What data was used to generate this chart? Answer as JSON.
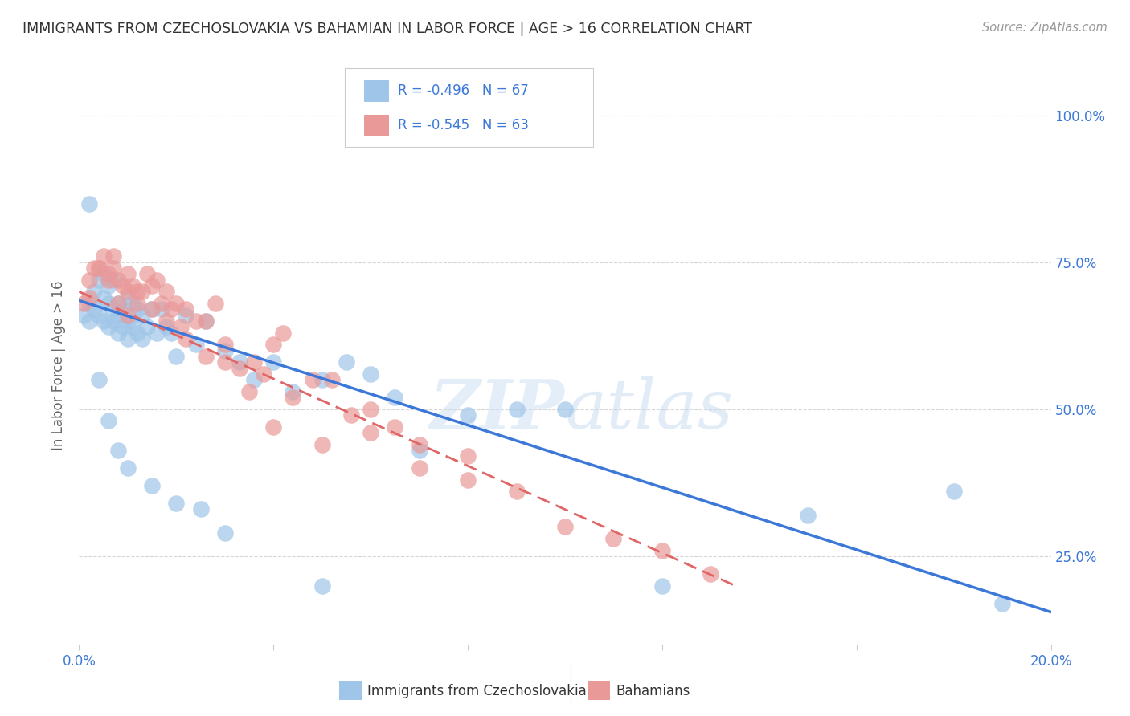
{
  "title": "IMMIGRANTS FROM CZECHOSLOVAKIA VS BAHAMIAN IN LABOR FORCE | AGE > 16 CORRELATION CHART",
  "source": "Source: ZipAtlas.com",
  "ylabel_left": "In Labor Force | Age > 16",
  "xlim": [
    0.0,
    0.2
  ],
  "ylim": [
    0.1,
    1.05
  ],
  "yticks_right": [
    0.25,
    0.5,
    0.75,
    1.0
  ],
  "ytick_right_labels": [
    "25.0%",
    "50.0%",
    "75.0%",
    "100.0%"
  ],
  "legend1_label": "R = -0.496   N = 67",
  "legend2_label": "R = -0.545   N = 63",
  "legend_bottom1": "Immigrants from Czechoslovakia",
  "legend_bottom2": "Bahamians",
  "blue_color": "#9fc5e8",
  "pink_color": "#ea9999",
  "blue_line_color": "#3c78d8",
  "pink_line_color": "#e06666",
  "text_color": "#3c78d8",
  "background_color": "#ffffff",
  "grid_color": "#cccccc",
  "blue_scatter_x": [
    0.001,
    0.002,
    0.002,
    0.003,
    0.003,
    0.004,
    0.004,
    0.005,
    0.005,
    0.005,
    0.006,
    0.006,
    0.006,
    0.007,
    0.007,
    0.007,
    0.008,
    0.008,
    0.008,
    0.009,
    0.009,
    0.01,
    0.01,
    0.01,
    0.011,
    0.011,
    0.012,
    0.012,
    0.013,
    0.013,
    0.014,
    0.015,
    0.016,
    0.017,
    0.018,
    0.019,
    0.02,
    0.022,
    0.024,
    0.026,
    0.03,
    0.033,
    0.036,
    0.04,
    0.044,
    0.05,
    0.055,
    0.06,
    0.065,
    0.07,
    0.08,
    0.09,
    0.1,
    0.12,
    0.15,
    0.18,
    0.19,
    0.002,
    0.004,
    0.006,
    0.008,
    0.01,
    0.015,
    0.02,
    0.025,
    0.03,
    0.05
  ],
  "blue_scatter_y": [
    0.66,
    0.68,
    0.65,
    0.7,
    0.67,
    0.72,
    0.66,
    0.69,
    0.65,
    0.73,
    0.68,
    0.64,
    0.71,
    0.67,
    0.65,
    0.72,
    0.68,
    0.66,
    0.63,
    0.67,
    0.64,
    0.69,
    0.65,
    0.62,
    0.68,
    0.64,
    0.67,
    0.63,
    0.66,
    0.62,
    0.64,
    0.67,
    0.63,
    0.67,
    0.64,
    0.63,
    0.59,
    0.66,
    0.61,
    0.65,
    0.6,
    0.58,
    0.55,
    0.58,
    0.53,
    0.55,
    0.58,
    0.56,
    0.52,
    0.43,
    0.49,
    0.5,
    0.5,
    0.2,
    0.32,
    0.36,
    0.17,
    0.85,
    0.55,
    0.48,
    0.43,
    0.4,
    0.37,
    0.34,
    0.33,
    0.29,
    0.2
  ],
  "pink_scatter_x": [
    0.001,
    0.002,
    0.003,
    0.004,
    0.005,
    0.006,
    0.007,
    0.007,
    0.008,
    0.009,
    0.01,
    0.01,
    0.011,
    0.012,
    0.013,
    0.014,
    0.015,
    0.016,
    0.017,
    0.018,
    0.019,
    0.02,
    0.021,
    0.022,
    0.024,
    0.026,
    0.028,
    0.03,
    0.033,
    0.036,
    0.038,
    0.04,
    0.042,
    0.044,
    0.048,
    0.052,
    0.056,
    0.06,
    0.065,
    0.07,
    0.08,
    0.002,
    0.004,
    0.006,
    0.008,
    0.01,
    0.012,
    0.015,
    0.018,
    0.022,
    0.026,
    0.03,
    0.035,
    0.04,
    0.05,
    0.06,
    0.07,
    0.08,
    0.09,
    0.1,
    0.11,
    0.12,
    0.13
  ],
  "pink_scatter_y": [
    0.68,
    0.72,
    0.74,
    0.74,
    0.76,
    0.73,
    0.74,
    0.76,
    0.72,
    0.71,
    0.7,
    0.73,
    0.71,
    0.7,
    0.7,
    0.73,
    0.71,
    0.72,
    0.68,
    0.7,
    0.67,
    0.68,
    0.64,
    0.67,
    0.65,
    0.65,
    0.68,
    0.61,
    0.57,
    0.58,
    0.56,
    0.61,
    0.63,
    0.52,
    0.55,
    0.55,
    0.49,
    0.5,
    0.47,
    0.44,
    0.42,
    0.69,
    0.74,
    0.72,
    0.68,
    0.66,
    0.68,
    0.67,
    0.65,
    0.62,
    0.59,
    0.58,
    0.53,
    0.47,
    0.44,
    0.46,
    0.4,
    0.38,
    0.36,
    0.3,
    0.28,
    0.26,
    0.22
  ],
  "blue_trend_x": [
    0.0,
    0.2
  ],
  "blue_trend_y": [
    0.685,
    0.155
  ],
  "pink_trend_x": [
    0.0,
    0.135
  ],
  "pink_trend_y": [
    0.7,
    0.2
  ]
}
